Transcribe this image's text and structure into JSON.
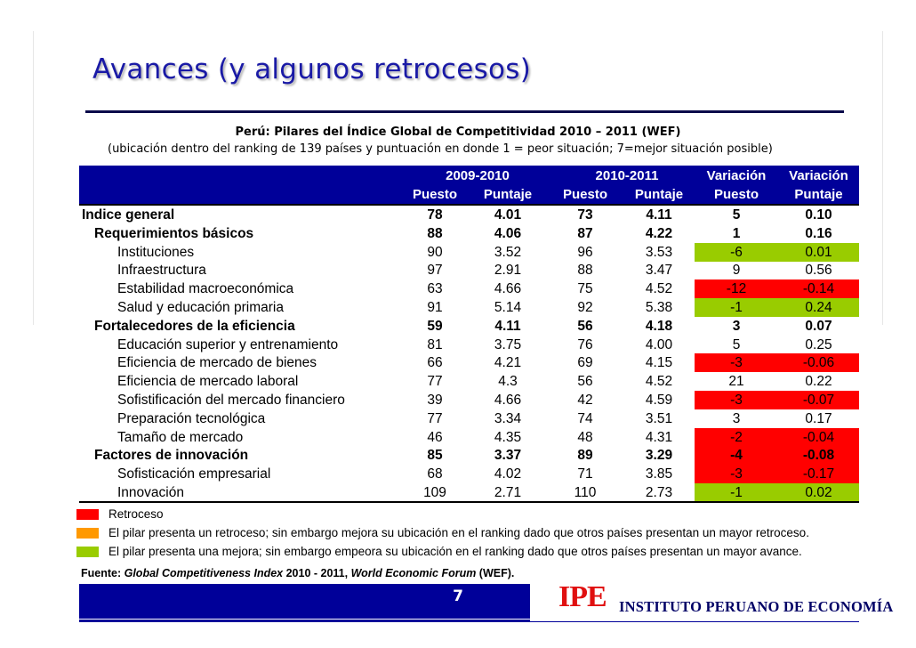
{
  "slide": {
    "title": "Avances (y algunos retrocesos)",
    "subtitle": "Perú: Pilares del Índice Global de Competitividad 2010 – 2011 (WEF)",
    "note": "(ubicación dentro del ranking de 139 países y puntuación en donde 1 = peor situación; 7=mejor situación posible)",
    "page_number": "7"
  },
  "table": {
    "header_top": [
      "2009-2010",
      "2010-2011",
      "Variación",
      "Variación"
    ],
    "header_sub": [
      "Puesto",
      "Puntaje",
      "Puesto",
      "Puntaje",
      "Puesto",
      "Puntaje"
    ],
    "rows": [
      {
        "label": "Indice general",
        "level": 0,
        "bold": true,
        "p09": "78",
        "s09": "4.01",
        "p10": "73",
        "s10": "4.11",
        "vp": "5",
        "vs": "0.10",
        "highlight": ""
      },
      {
        "label": "Requerimientos básicos",
        "level": 1,
        "bold": true,
        "p09": "88",
        "s09": "4.06",
        "p10": "87",
        "s10": "4.22",
        "vp": "1",
        "vs": "0.16",
        "highlight": ""
      },
      {
        "label": "Instituciones",
        "level": 2,
        "bold": false,
        "p09": "90",
        "s09": "3.52",
        "p10": "96",
        "s10": "3.53",
        "vp": "-6",
        "vs": "0.01",
        "highlight": "green"
      },
      {
        "label": "Infraestructura",
        "level": 2,
        "bold": false,
        "p09": "97",
        "s09": "2.91",
        "p10": "88",
        "s10": "3.47",
        "vp": "9",
        "vs": "0.56",
        "highlight": ""
      },
      {
        "label": "Estabilidad macroeconómica",
        "level": 2,
        "bold": false,
        "p09": "63",
        "s09": "4.66",
        "p10": "75",
        "s10": "4.52",
        "vp": "-12",
        "vs": "-0.14",
        "highlight": "red"
      },
      {
        "label": "Salud y educación primaria",
        "level": 2,
        "bold": false,
        "p09": "91",
        "s09": "5.14",
        "p10": "92",
        "s10": "5.38",
        "vp": "-1",
        "vs": "0.24",
        "highlight": "green"
      },
      {
        "label": "Fortalecedores de la eficiencia",
        "level": 1,
        "bold": true,
        "p09": "59",
        "s09": "4.11",
        "p10": "56",
        "s10": "4.18",
        "vp": "3",
        "vs": "0.07",
        "highlight": ""
      },
      {
        "label": "Educación superior y entrenamiento",
        "level": 2,
        "bold": false,
        "p09": "81",
        "s09": "3.75",
        "p10": "76",
        "s10": "4.00",
        "vp": "5",
        "vs": "0.25",
        "highlight": ""
      },
      {
        "label": "Eficiencia de mercado de bienes",
        "level": 2,
        "bold": false,
        "p09": "66",
        "s09": "4.21",
        "p10": "69",
        "s10": "4.15",
        "vp": "-3",
        "vs": "-0.06",
        "highlight": "red"
      },
      {
        "label": "Eficiencia de mercado laboral",
        "level": 2,
        "bold": false,
        "p09": "77",
        "s09": "4.3",
        "p10": "56",
        "s10": "4.52",
        "vp": "21",
        "vs": "0.22",
        "highlight": ""
      },
      {
        "label": "Sofistificación del mercado financiero",
        "level": 2,
        "bold": false,
        "p09": "39",
        "s09": "4.66",
        "p10": "42",
        "s10": "4.59",
        "vp": "-3",
        "vs": "-0.07",
        "highlight": "red"
      },
      {
        "label": "Preparación tecnológica",
        "level": 2,
        "bold": false,
        "p09": "77",
        "s09": "3.34",
        "p10": "74",
        "s10": "3.51",
        "vp": "3",
        "vs": "0.17",
        "highlight": ""
      },
      {
        "label": "Tamaño de mercado",
        "level": 2,
        "bold": false,
        "p09": "46",
        "s09": "4.35",
        "p10": "48",
        "s10": "4.31",
        "vp": "-2",
        "vs": "-0.04",
        "highlight": "red"
      },
      {
        "label": "Factores de innovación",
        "level": 1,
        "bold": true,
        "p09": "85",
        "s09": "3.37",
        "p10": "89",
        "s10": "3.29",
        "vp": "-4",
        "vs": "-0.08",
        "highlight": "red"
      },
      {
        "label": "Sofisticación empresarial",
        "level": 2,
        "bold": false,
        "p09": "68",
        "s09": "4.02",
        "p10": "71",
        "s10": "3.85",
        "vp": "-3",
        "vs": "-0.17",
        "highlight": "red"
      },
      {
        "label": "Innovación",
        "level": 2,
        "bold": false,
        "p09": "109",
        "s09": "2.71",
        "p10": "110",
        "s10": "2.73",
        "vp": "-1",
        "vs": "0.02",
        "highlight": "green"
      }
    ]
  },
  "legend": [
    {
      "color": "#ff0000",
      "text": "Retroceso"
    },
    {
      "color": "#ff9900",
      "text": "El pilar presenta un retroceso; sin embargo mejora su ubicación en el ranking dado que otros países presentan un mayor retroceso."
    },
    {
      "color": "#99cc00",
      "text": "El pilar presenta una mejora; sin embargo empeora su ubicación en el ranking dado que otros países presentan un mayor avance."
    }
  ],
  "source": {
    "prefix": "Fuente: ",
    "title": "Global Competitiveness Index",
    "middle": " 2010 - 2011, ",
    "org": "World Economic Forum",
    "suffix": " (WEF)."
  },
  "logo": {
    "acronym": "IPE",
    "name": "INSTITUTO PERUANO DE ECONOMÍA"
  },
  "colors": {
    "header_bg": "#000099",
    "title": "#1a1aa6",
    "red": "#ff0000",
    "green": "#99cc00",
    "orange": "#ff9900"
  }
}
